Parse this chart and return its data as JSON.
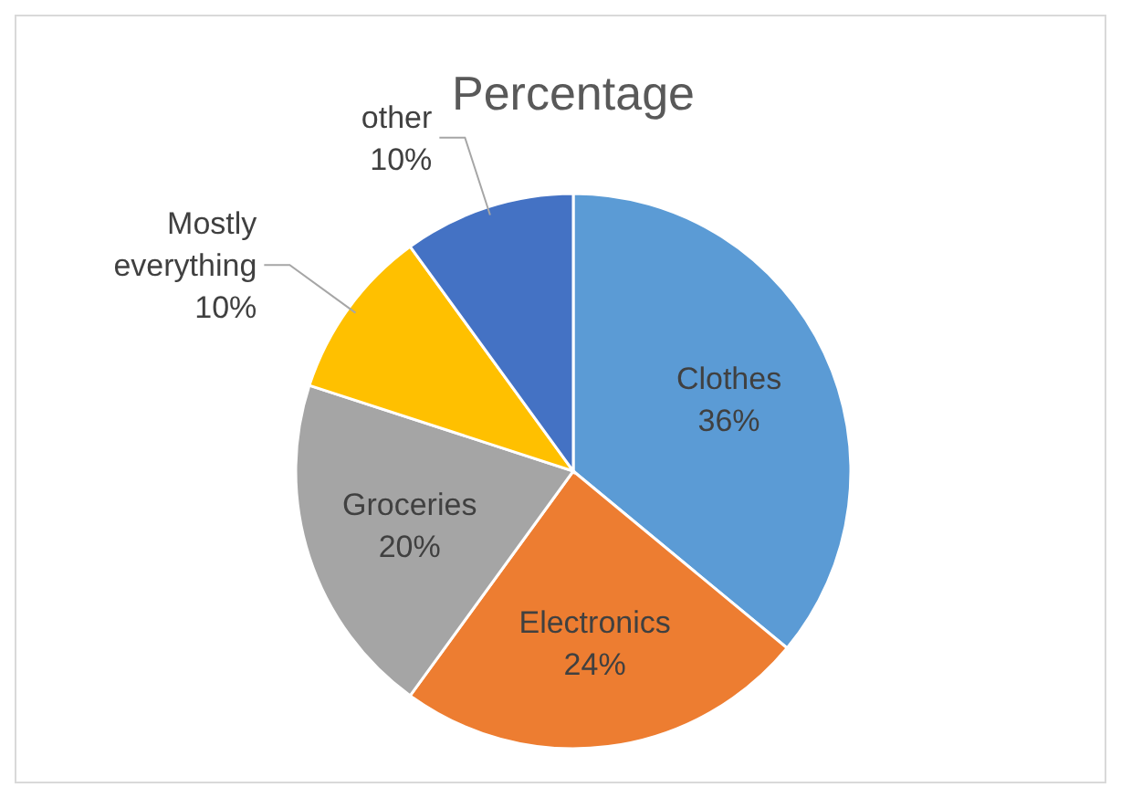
{
  "chart_data": {
    "type": "pie",
    "title": "Percentage",
    "categories": [
      "Clothes",
      "Electronics",
      "Groceries",
      "Mostly everything",
      "other"
    ],
    "values": [
      36,
      24,
      20,
      10,
      10
    ],
    "value_labels": [
      "36%",
      "24%",
      "20%",
      "10%",
      "10%"
    ],
    "colors": [
      "#5b9bd5",
      "#ed7d31",
      "#a5a5a5",
      "#ffc000",
      "#4472c4"
    ]
  }
}
